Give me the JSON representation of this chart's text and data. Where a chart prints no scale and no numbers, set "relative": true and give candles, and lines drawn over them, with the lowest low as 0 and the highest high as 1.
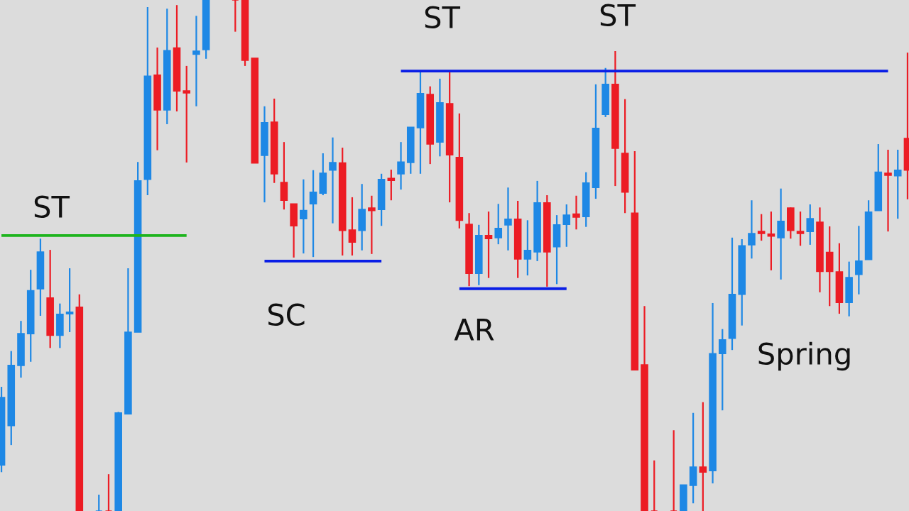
{
  "chart_data": {
    "type": "candlestick",
    "relative": true,
    "categories": [
      null,
      null,
      null,
      null,
      null,
      null,
      null,
      null,
      null,
      null,
      null,
      null,
      null,
      null,
      null,
      null,
      null,
      null,
      null,
      null,
      null,
      null,
      null,
      null,
      null,
      null,
      null,
      null,
      null,
      null,
      null,
      null,
      null,
      null,
      null,
      null,
      null,
      null,
      null,
      null,
      null,
      null,
      null,
      null,
      null,
      null,
      null,
      null,
      null,
      null,
      null,
      null,
      null,
      null,
      null,
      null,
      null,
      null,
      null,
      null,
      null,
      null,
      null,
      null,
      null,
      null,
      null,
      null,
      null,
      null,
      null,
      null,
      null,
      null,
      null,
      null,
      null,
      null,
      null,
      null,
      null,
      null,
      null,
      null,
      null,
      null,
      null,
      null,
      null,
      null,
      null,
      null,
      null,
      null
    ],
    "ohlc": [
      [
        0.09,
        0.243,
        0.076,
        0.222
      ],
      [
        0.167,
        0.313,
        0.129,
        0.285
      ],
      [
        0.285,
        0.372,
        0.261,
        0.347
      ],
      [
        0.347,
        0.472,
        0.292,
        0.431
      ],
      [
        0.435,
        0.533,
        0.382,
        0.507
      ],
      [
        0.417,
        0.511,
        0.319,
        0.344
      ],
      [
        0.344,
        0.406,
        0.319,
        0.385
      ],
      [
        0.386,
        0.475,
        0.35,
        0.389
      ],
      [
        0.399,
        0.424,
        0,
        0
      ],
      null,
      [
        0,
        0.032,
        0,
        0
      ],
      [
        0,
        0.072,
        0,
        0
      ],
      [
        0,
        0.194,
        0,
        0.192
      ],
      [
        0.19,
        0.475,
        0.19,
        0.35
      ],
      [
        0.35,
        0.683,
        0.35,
        0.646
      ],
      [
        0.649,
        0.986,
        0.618,
        0.851
      ],
      [
        0.853,
        0.907,
        0.706,
        0.785
      ],
      [
        0.785,
        0.983,
        0.757,
        0.901
      ],
      [
        0.906,
        0.99,
        0.782,
        0.822
      ],
      [
        0.822,
        0.871,
        0.682,
        0.818
      ],
      [
        0.894,
        0.969,
        0.792,
        0.9
      ],
      [
        0.903,
        1,
        0.885,
        1
      ],
      null,
      null,
      [
        1,
        1,
        0.938,
        1
      ],
      [
        1,
        1,
        0.871,
        0.882
      ],
      [
        0.886,
        0.886,
        0.681,
        0.681
      ],
      [
        0.696,
        0.792,
        0.604,
        0.76
      ],
      [
        0.761,
        0.807,
        0.642,
        0.66
      ],
      [
        0.643,
        0.722,
        0.59,
        0.608
      ],
      [
        0.601,
        0.601,
        0.496,
        0.558
      ],
      [
        0.572,
        0.649,
        0.504,
        0.588
      ],
      [
        0.601,
        0.667,
        0.497,
        0.624
      ],
      [
        0.622,
        0.7,
        0.618,
        0.661
      ],
      [
        0.667,
        0.731,
        0.563,
        0.682
      ],
      [
        0.681,
        0.711,
        0.5,
        0.549
      ],
      [
        0.55,
        0.614,
        0.5,
        0.526
      ],
      [
        0.549,
        0.64,
        0.51,
        0.59
      ],
      [
        0.593,
        0.617,
        0.503,
        0.588
      ],
      [
        0.59,
        0.66,
        0.558,
        0.649
      ],
      [
        0.651,
        0.668,
        0.608,
        0.647
      ],
      [
        0.66,
        0.722,
        0.629,
        0.683
      ],
      [
        0.682,
        0.751,
        0.66,
        0.751
      ],
      [
        0.75,
        0.861,
        0.66,
        0.817
      ],
      [
        0.815,
        0.831,
        0.679,
        0.718
      ],
      [
        0.722,
        0.846,
        0.694,
        0.799
      ],
      [
        0.797,
        0.861,
        0.604,
        0.697
      ],
      [
        0.692,
        0.778,
        0.553,
        0.569
      ],
      [
        0.561,
        0.583,
        0.44,
        0.465
      ],
      [
        0.465,
        0.56,
        0.442,
        0.539
      ],
      [
        0.539,
        0.586,
        0.456,
        0.533
      ],
      [
        0.535,
        0.601,
        0.522,
        0.553
      ],
      [
        0.56,
        0.633,
        0.51,
        0.571
      ],
      [
        0.571,
        0.607,
        0.456,
        0.493
      ],
      [
        0.493,
        0.569,
        0.461,
        0.51
      ],
      [
        0.507,
        0.646,
        0.489,
        0.603
      ],
      [
        0.603,
        0.618,
        0.439,
        0.507
      ],
      [
        0.517,
        0.579,
        0.444,
        0.56
      ],
      [
        0.561,
        0.6,
        0.517,
        0.579
      ],
      [
        0.581,
        0.617,
        0.551,
        0.575
      ],
      [
        0.576,
        0.663,
        0.556,
        0.642
      ],
      [
        0.633,
        0.835,
        0.611,
        0.749
      ],
      [
        0.776,
        0.867,
        0.771,
        0.835
      ],
      [
        0.835,
        0.9,
        0.636,
        0.71
      ],
      [
        0.7,
        0.806,
        0.583,
        0.624
      ],
      [
        0.583,
        0.704,
        0.276,
        0.276
      ],
      [
        0.286,
        0.401,
        0,
        0
      ],
      [
        0,
        0.099,
        0,
        0
      ],
      null,
      [
        0,
        0.158,
        0,
        0
      ],
      [
        0,
        0.051,
        0,
        0.051
      ],
      [
        0.05,
        0.192,
        0.015,
        0.086
      ],
      [
        0.086,
        0.213,
        0,
        0.076
      ],
      [
        0.079,
        0.407,
        0.054,
        0.308
      ],
      [
        0.308,
        0.356,
        0.197,
        0.335
      ],
      [
        0.338,
        0.535,
        0.315,
        0.424
      ],
      [
        0.424,
        0.532,
        0.363,
        0.519
      ],
      [
        0.521,
        0.608,
        0.494,
        0.543
      ],
      [
        0.547,
        0.581,
        0.529,
        0.543
      ],
      [
        0.542,
        0.586,
        0.471,
        0.538
      ],
      [
        0.535,
        0.631,
        0.453,
        0.567
      ],
      [
        0.593,
        0.594,
        0.533,
        0.549
      ],
      [
        0.547,
        0.586,
        0.519,
        0.543
      ],
      [
        0.547,
        0.6,
        0.521,
        0.572
      ],
      [
        0.565,
        0.594,
        0.428,
        0.469
      ],
      [
        0.506,
        0.557,
        0.401,
        0.469
      ],
      [
        0.468,
        0.524,
        0.386,
        0.408
      ],
      [
        0.408,
        0.488,
        0.381,
        0.457
      ],
      [
        0.463,
        0.558,
        0.424,
        0.489
      ],
      [
        0.492,
        0.608,
        0.492,
        0.585
      ],
      [
        0.588,
        0.718,
        0.588,
        0.663
      ],
      [
        0.661,
        0.707,
        0.547,
        0.657
      ],
      [
        0.656,
        0.707,
        0.572,
        0.667
      ],
      [
        0.729,
        0.897,
        0.61,
        0.667
      ]
    ],
    "colors": [
      "#1e88e5",
      "#1e88e5",
      "#1e88e5",
      "#1e88e5",
      "#1e88e5",
      "#ec1c24",
      "#1e88e5",
      "#1e88e5",
      "#ec1c24",
      null,
      "#1e88e5",
      "#ec1c24",
      "#1e88e5",
      "#1e88e5",
      "#1e88e5",
      "#1e88e5",
      "#ec1c24",
      "#1e88e5",
      "#ec1c24",
      "#ec1c24",
      "#1e88e5",
      "#1e88e5",
      null,
      null,
      "#ec1c24",
      "#ec1c24",
      "#ec1c24",
      "#1e88e5",
      "#ec1c24",
      "#ec1c24",
      "#ec1c24",
      "#1e88e5",
      "#1e88e5",
      "#1e88e5",
      "#1e88e5",
      "#ec1c24",
      "#ec1c24",
      "#1e88e5",
      "#ec1c24",
      "#1e88e5",
      "#ec1c24",
      "#1e88e5",
      "#1e88e5",
      "#1e88e5",
      "#ec1c24",
      "#1e88e5",
      "#ec1c24",
      "#ec1c24",
      "#ec1c24",
      "#1e88e5",
      "#ec1c24",
      "#1e88e5",
      "#1e88e5",
      "#ec1c24",
      "#1e88e5",
      "#1e88e5",
      "#ec1c24",
      "#1e88e5",
      "#1e88e5",
      "#ec1c24",
      "#1e88e5",
      "#1e88e5",
      "#1e88e5",
      "#ec1c24",
      "#ec1c24",
      "#ec1c24",
      "#ec1c24",
      "#ec1c24",
      null,
      "#ec1c24",
      "#1e88e5",
      "#1e88e5",
      "#ec1c24",
      "#1e88e5",
      "#1e88e5",
      "#1e88e5",
      "#1e88e5",
      "#1e88e5",
      "#ec1c24",
      "#ec1c24",
      "#1e88e5",
      "#ec1c24",
      "#ec1c24",
      "#1e88e5",
      "#ec1c24",
      "#ec1c24",
      "#ec1c24",
      "#1e88e5",
      "#1e88e5",
      "#1e88e5",
      "#1e88e5",
      "#ec1c24",
      "#1e88e5",
      "#ec1c24"
    ],
    "series": [
      {
        "type": "line",
        "color": "#1db41d",
        "values": [
          0.539,
          0.539,
          0.539,
          0.539,
          0.539,
          0.539,
          0.539,
          0.539,
          0.539,
          0.539,
          0.539,
          0.539,
          0.539,
          0.539,
          0.539,
          0.539,
          0.539,
          0.539,
          0.539,
          0.539,
          null,
          null,
          null,
          null,
          null,
          null,
          null,
          null,
          null,
          null,
          null,
          null,
          null,
          null,
          null,
          null,
          null,
          null,
          null,
          null,
          null,
          null,
          null,
          null,
          null,
          null,
          null,
          null,
          null,
          null,
          null,
          null,
          null,
          null,
          null,
          null,
          null,
          null,
          null,
          null,
          null,
          null,
          null,
          null,
          null,
          null,
          null,
          null,
          null,
          null,
          null,
          null,
          null,
          null,
          null,
          null,
          null,
          null,
          null,
          null,
          null,
          null,
          null,
          null,
          null,
          null,
          null,
          null,
          null,
          null,
          null,
          null,
          null,
          null
        ]
      },
      {
        "type": "line",
        "color": "#0a1ee6",
        "values": [
          null,
          null,
          null,
          null,
          null,
          null,
          null,
          null,
          null,
          null,
          null,
          null,
          null,
          null,
          null,
          null,
          null,
          null,
          null,
          null,
          null,
          null,
          null,
          null,
          null,
          null,
          null,
          0.489,
          0.489,
          0.489,
          0.489,
          0.489,
          0.489,
          0.489,
          0.489,
          0.489,
          0.489,
          0.489,
          0.489,
          0.489,
          null,
          null,
          null,
          null,
          null,
          null,
          null,
          null,
          null,
          null,
          null,
          null,
          null,
          null,
          null,
          null,
          null,
          null,
          null,
          null,
          null,
          null,
          null,
          null,
          null,
          null,
          null,
          null,
          null,
          null,
          null,
          null,
          null,
          null,
          null,
          null,
          null,
          null,
          null,
          null,
          null,
          null,
          null,
          null,
          null,
          null,
          null,
          null,
          null,
          null,
          null,
          null,
          null,
          null
        ]
      },
      {
        "type": "line",
        "color": "#0a1ee6",
        "values": [
          null,
          null,
          null,
          null,
          null,
          null,
          null,
          null,
          null,
          null,
          null,
          null,
          null,
          null,
          null,
          null,
          null,
          null,
          null,
          null,
          null,
          null,
          null,
          null,
          null,
          null,
          null,
          null,
          null,
          null,
          null,
          null,
          null,
          null,
          null,
          null,
          null,
          null,
          null,
          null,
          null,
          null,
          null,
          null,
          null,
          null,
          null,
          0.435,
          0.435,
          0.435,
          0.435,
          0.435,
          0.435,
          0.435,
          0.435,
          0.435,
          0.435,
          0.435,
          0.435,
          null,
          null,
          null,
          null,
          null,
          null,
          null,
          null,
          null,
          null,
          null,
          null,
          null,
          null,
          null,
          null,
          null,
          null,
          null,
          null,
          null,
          null,
          null,
          null,
          null,
          null,
          null,
          null,
          null,
          null,
          null,
          null,
          null,
          null,
          null
        ]
      },
      {
        "type": "line",
        "color": "#0a1ee6",
        "values": [
          null,
          null,
          null,
          null,
          null,
          null,
          null,
          null,
          null,
          null,
          null,
          null,
          null,
          null,
          null,
          null,
          null,
          null,
          null,
          null,
          null,
          null,
          null,
          null,
          null,
          null,
          null,
          null,
          null,
          null,
          null,
          null,
          null,
          null,
          null,
          null,
          null,
          null,
          null,
          null,
          null,
          0.861,
          0.861,
          0.861,
          0.861,
          0.861,
          0.861,
          0.861,
          0.861,
          0.861,
          0.861,
          0.861,
          0.861,
          0.861,
          0.861,
          0.861,
          0.861,
          0.861,
          0.861,
          0.861,
          0.861,
          0.861,
          0.861,
          0.861,
          0.861,
          0.861,
          0.861,
          0.861,
          0.861,
          0.861,
          0.861,
          0.861,
          0.861,
          0.861,
          0.861,
          0.861,
          0.861,
          0.861,
          0.861,
          0.861,
          0.861,
          0.861,
          0.861,
          0.861,
          0.861,
          0.861,
          0.861,
          0.861,
          0.861,
          0.861,
          0.861,
          0.861,
          null,
          null
        ]
      }
    ],
    "annotations": [
      "ST",
      "SC",
      "ST",
      "AR",
      "ST",
      "Spring"
    ]
  }
}
